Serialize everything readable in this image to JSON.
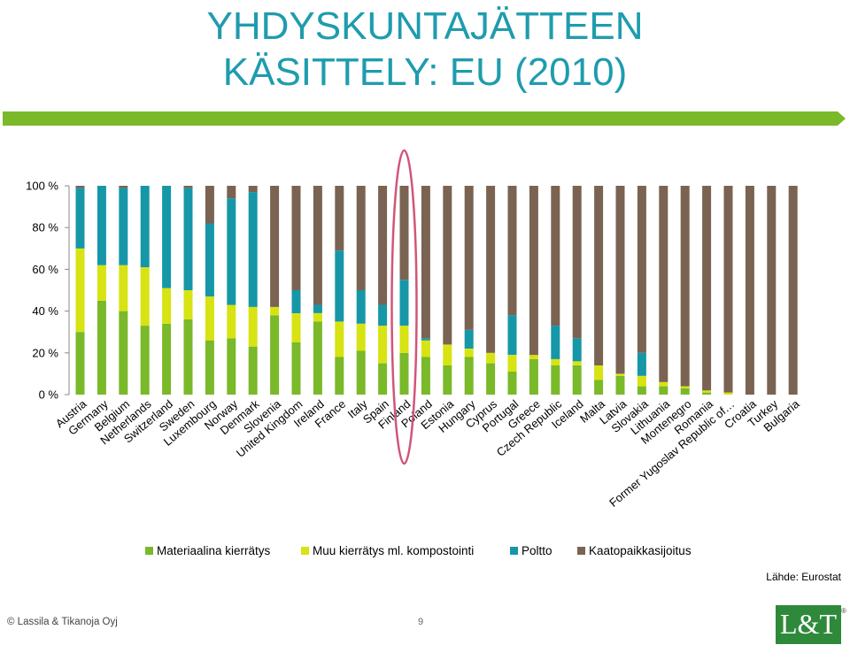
{
  "slide": {
    "title_line1": "YHDYSKUNTAJÄTTEEN",
    "title_line2": "KÄSITTELY: EU (2010)",
    "source": "Lähde: Eurostat",
    "footer": "© Lassila & Tikanoja Oyj",
    "page_number": "9",
    "logo_text": "L&T",
    "logo_reg": "®",
    "accent_color": "#7ab929",
    "title_color": "#1e9cae"
  },
  "chart_data": {
    "type": "bar",
    "stacked": true,
    "title": "",
    "xlabel": "",
    "ylabel": "",
    "ylim": [
      0,
      100
    ],
    "yticks": [
      "0 %",
      "20 %",
      "40 %",
      "60 %",
      "80 %",
      "100 %"
    ],
    "highlighted_category": "Finland",
    "legend_position": "bottom",
    "categories": [
      "Austria",
      "Germany",
      "Belgium",
      "Netherlands",
      "Switzerland",
      "Sweden",
      "Luxembourg",
      "Norway",
      "Denmark",
      "Slovenia",
      "United Kingdom",
      "Ireland",
      "France",
      "Italy",
      "Spain",
      "Finland",
      "Poland",
      "Estonia",
      "Hungary",
      "Cyprus",
      "Portugal",
      "Greece",
      "Czech Republic",
      "Iceland",
      "Malta",
      "Latvia",
      "Slovakia",
      "Lithuania",
      "Montenegro",
      "Romania",
      "Former Yugoslav Republic of…",
      "Croatia",
      "Turkey",
      "Bulgaria"
    ],
    "series": [
      {
        "name": "Materiaalina kierrätys",
        "color": "#7ab929",
        "values": [
          30,
          45,
          40,
          33,
          34,
          36,
          26,
          27,
          23,
          38,
          25,
          35,
          18,
          21,
          15,
          20,
          18,
          14,
          18,
          15,
          11,
          17,
          14,
          14,
          7,
          9,
          4,
          4,
          3,
          1,
          0,
          0,
          0,
          0
        ]
      },
      {
        "name": "Muu kierrätys ml. kompostointi",
        "color": "#d7e312",
        "values": [
          40,
          17,
          22,
          28,
          17,
          14,
          21,
          16,
          19,
          4,
          14,
          4,
          17,
          13,
          18,
          13,
          8,
          10,
          4,
          5,
          8,
          2,
          3,
          2,
          7,
          1,
          5,
          2,
          1,
          1,
          1,
          0,
          0,
          0
        ]
      },
      {
        "name": "Poltto",
        "color": "#1697a8",
        "values": [
          29,
          38,
          37,
          39,
          49,
          49,
          35,
          51,
          55,
          0,
          11,
          4,
          34,
          16,
          10,
          22,
          1,
          0,
          9,
          0,
          19,
          0,
          16,
          11,
          0,
          0,
          11,
          0,
          0,
          0,
          0,
          0,
          0,
          0
        ]
      },
      {
        "name": "Kaatopaikkasijoitus",
        "color": "#7a6352",
        "values": [
          1,
          0,
          1,
          0,
          0,
          1,
          18,
          6,
          3,
          58,
          50,
          57,
          31,
          50,
          57,
          45,
          73,
          76,
          69,
          80,
          62,
          81,
          67,
          73,
          86,
          90,
          80,
          94,
          96,
          98,
          99,
          100,
          100,
          100
        ]
      }
    ]
  }
}
